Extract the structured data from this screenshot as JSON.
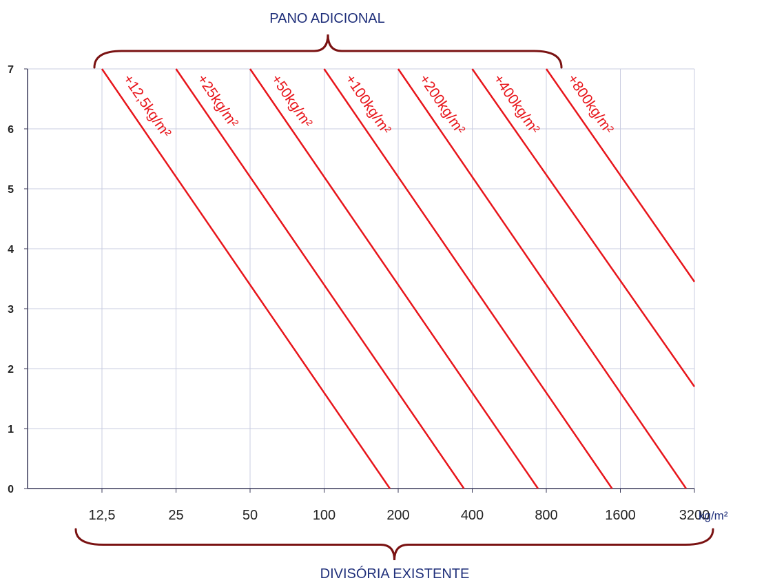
{
  "chart_data": {
    "type": "line",
    "title_top": "PANO ADICIONAL",
    "title_bottom": "DIVISÓRIA EXISTENTE",
    "x_unit_label": "kg/m²",
    "x_scale": "log2",
    "categories": [
      "12,5",
      "25",
      "50",
      "100",
      "200",
      "400",
      "800",
      "1600",
      "3200"
    ],
    "x_values": [
      12.5,
      25,
      50,
      100,
      200,
      400,
      800,
      1600,
      3200
    ],
    "y_ticks": [
      "0",
      "1",
      "2",
      "3",
      "4",
      "5",
      "6",
      "7"
    ],
    "ylim": [
      0,
      7
    ],
    "grid": true,
    "series": [
      {
        "name": "+12,5kg/m²",
        "points": [
          [
            12.5,
            7
          ],
          [
            185,
            0
          ]
        ]
      },
      {
        "name": "+25kg/m²",
        "points": [
          [
            25,
            7
          ],
          [
            370,
            0
          ]
        ]
      },
      {
        "name": "+50kg/m²",
        "points": [
          [
            50,
            7
          ],
          [
            740,
            0
          ]
        ]
      },
      {
        "name": "+100kg/m²",
        "points": [
          [
            100,
            7
          ],
          [
            1480,
            0
          ]
        ]
      },
      {
        "name": "+200kg/m²",
        "points": [
          [
            200,
            7
          ],
          [
            2960,
            0
          ]
        ]
      },
      {
        "name": "+400kg/m²",
        "points": [
          [
            400,
            7
          ],
          [
            3200,
            1.7
          ]
        ]
      },
      {
        "name": "+800kg/m²",
        "points": [
          [
            800,
            7
          ],
          [
            3200,
            3.45
          ]
        ]
      }
    ],
    "colors": {
      "line": "#e8151b",
      "grid": "#c9cce0",
      "axis": "#3a3a5a",
      "title": "#1f2f7a",
      "brace": "#7a1212"
    }
  }
}
